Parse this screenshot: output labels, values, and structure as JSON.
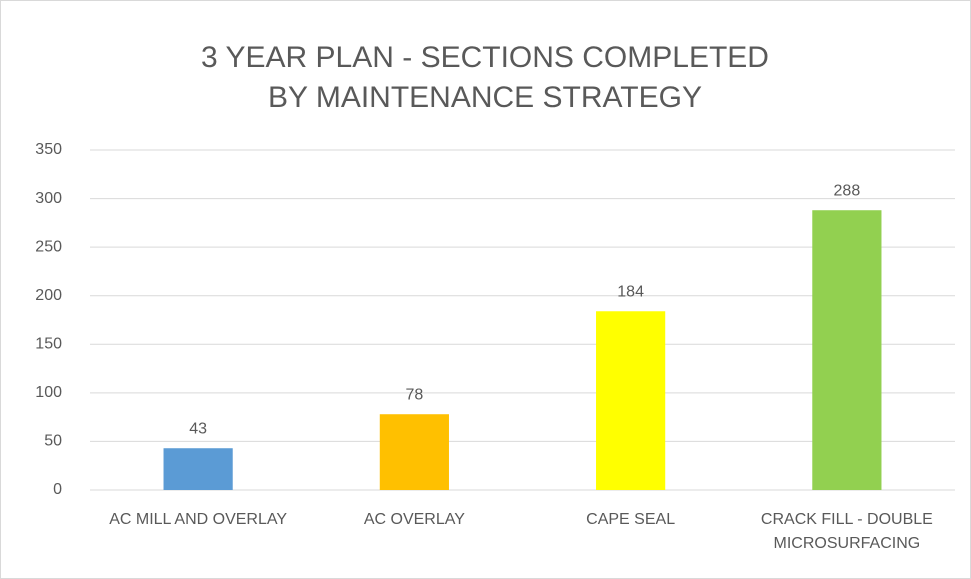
{
  "chart_data": {
    "type": "bar",
    "title": "3 YEAR PLAN - SECTIONS COMPLETED BY MAINTENANCE STRATEGY",
    "categories": [
      "AC MILL AND OVERLAY",
      "AC OVERLAY",
      "CAPE SEAL",
      "CRACK FILL - DOUBLE MICROSURFACING"
    ],
    "values": [
      43,
      78,
      184,
      288
    ],
    "colors": [
      "#5b9bd5",
      "#ffc000",
      "#ffff00",
      "#92d050"
    ],
    "ylim": [
      0,
      350
    ],
    "yticks": [
      0,
      50,
      100,
      150,
      200,
      250,
      300,
      350
    ],
    "grid": true
  }
}
